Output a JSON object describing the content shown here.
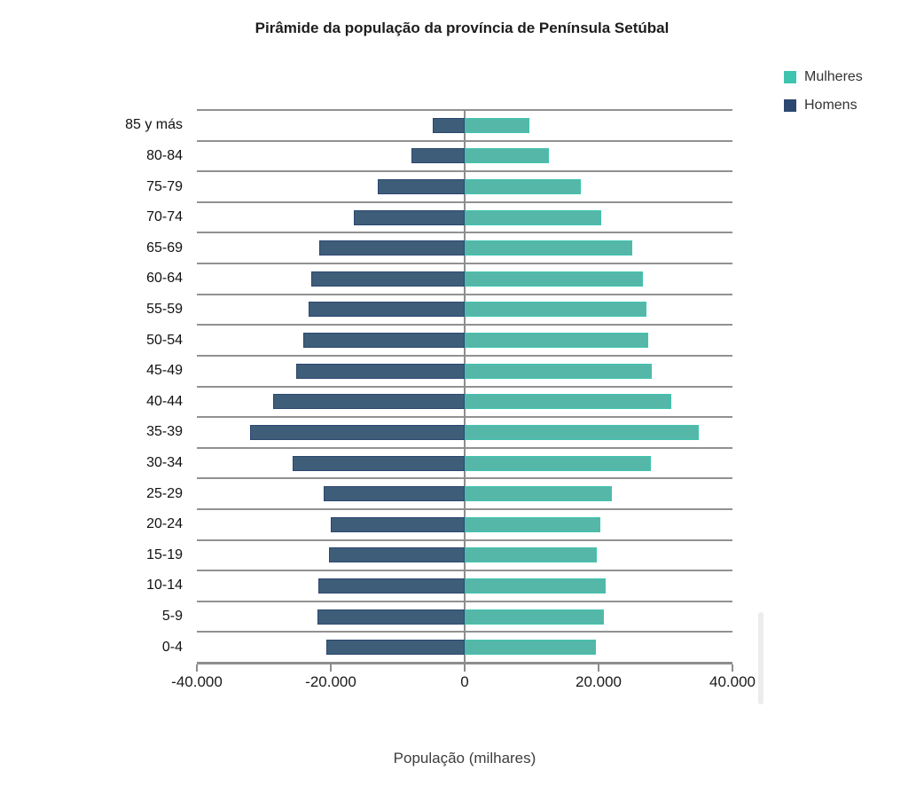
{
  "chart_data": {
    "type": "bar",
    "subtype": "population-pyramid",
    "title": "Pirâmide da população da província de Península Setúbal",
    "xlabel": "População (milhares)",
    "categories": [
      "85 y más",
      "80-84",
      "75-79",
      "70-74",
      "65-69",
      "60-64",
      "55-59",
      "50-54",
      "45-49",
      "40-44",
      "35-39",
      "30-34",
      "25-29",
      "20-24",
      "15-19",
      "10-14",
      "5-9",
      "0-4"
    ],
    "series": [
      {
        "name": "Mulheres",
        "side": "right",
        "color": "#3EC4AF",
        "fill": "#55B7A8",
        "values": [
          9700,
          12600,
          17300,
          20400,
          25000,
          26600,
          27200,
          27400,
          28000,
          30900,
          35000,
          27800,
          22000,
          20200,
          19800,
          21100,
          20800,
          19600
        ]
      },
      {
        "name": "Homens",
        "side": "left",
        "color": "#2C4770",
        "fill": "#3E5D79",
        "values": [
          -4800,
          -8000,
          -13000,
          -16600,
          -21700,
          -22900,
          -23300,
          -24100,
          -25100,
          -28600,
          -32100,
          -25700,
          -21000,
          -20000,
          -20200,
          -21900,
          -22000,
          -20600
        ]
      }
    ],
    "xlim": [
      -40000,
      40000
    ],
    "x_ticks": [
      {
        "value": -40000,
        "label": "-40.000"
      },
      {
        "value": -20000,
        "label": "-20.000"
      },
      {
        "value": 0,
        "label": "0"
      },
      {
        "value": 20000,
        "label": "20.000"
      },
      {
        "value": 40000,
        "label": "40.000"
      }
    ],
    "grid": true,
    "legend_position": "top-right",
    "gridline_color": "#919191",
    "axis_color": "#8d8d8d"
  }
}
